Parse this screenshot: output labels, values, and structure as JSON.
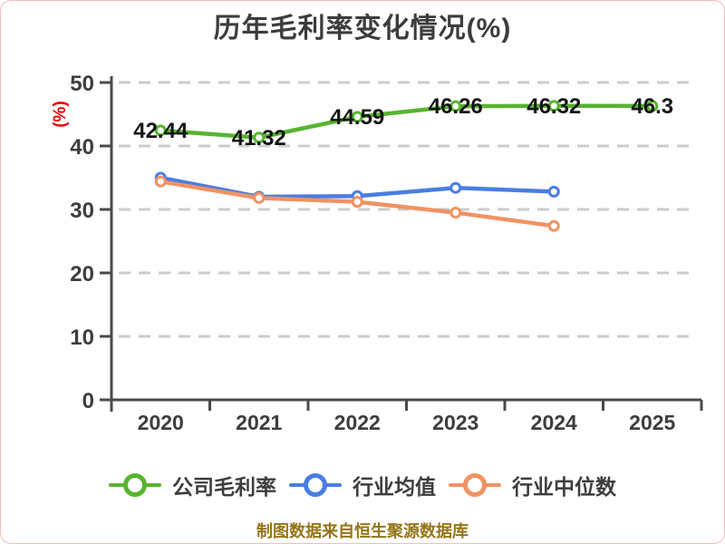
{
  "chart_data": {
    "type": "line",
    "title": "历年毛利率变化情况(%)",
    "ylabel": "(%)",
    "categories": [
      "2020",
      "2021",
      "2022",
      "2023",
      "2024",
      "2025"
    ],
    "series": [
      {
        "id": "company-gross-margin",
        "name": "公司毛利率",
        "color": "#57b42f",
        "values": [
          42.44,
          41.32,
          44.59,
          46.26,
          46.32,
          46.3
        ],
        "show_labels": true
      },
      {
        "id": "industry-mean",
        "name": "行业均值",
        "color": "#4a7de2",
        "values": [
          35.0,
          32.0,
          32.1,
          33.4,
          32.8,
          null
        ],
        "show_labels": false
      },
      {
        "id": "industry-median",
        "name": "行业中位数",
        "color": "#f19263",
        "values": [
          34.4,
          31.8,
          31.2,
          29.5,
          27.4,
          null
        ],
        "show_labels": false
      }
    ],
    "ylim": [
      0,
      50
    ],
    "yticks": [
      0,
      10,
      20,
      30,
      40,
      50
    ],
    "grid": "horizontal-dashed",
    "legend_position": "bottom"
  },
  "source_note": "制图数据来自恒生聚源数据库",
  "colors": {
    "title": "#3c3c3c",
    "axis": "#4a4a4a",
    "grid": "#cccccc",
    "tick_label": "#3d3d3d",
    "data_label": "#141414",
    "y_axis_label": "#e60000",
    "source_note": "#957518"
  }
}
